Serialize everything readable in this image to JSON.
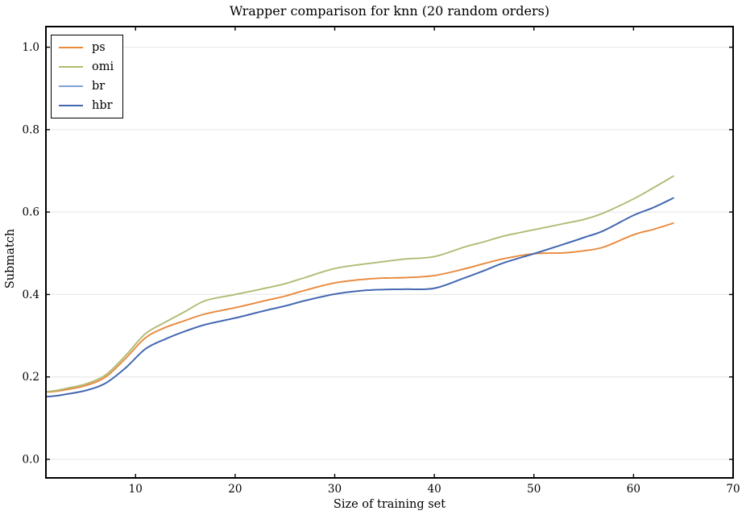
{
  "chart_data": {
    "type": "line",
    "title": "Wrapper comparison for knn (20 random orders)",
    "xlabel": "Size of training set",
    "ylabel": "Submatch",
    "xlim": [
      1,
      70
    ],
    "ylim": [
      -0.045,
      1.05
    ],
    "x_ticks": [
      10,
      20,
      30,
      40,
      50,
      60,
      70
    ],
    "y_ticks": [
      0.0,
      0.2,
      0.4,
      0.6,
      0.8,
      1.0
    ],
    "y_tick_labels": [
      "0.0",
      "0.2",
      "0.4",
      "0.6",
      "0.8",
      "1.0"
    ],
    "grid": "horizontal-only",
    "grid_color": "#e6e6e6",
    "legend_position": "upper-left",
    "x": [
      1,
      2,
      3,
      5,
      7,
      9,
      11,
      13,
      15,
      17,
      20,
      23,
      25,
      27,
      30,
      33,
      35,
      37,
      40,
      43,
      45,
      47,
      50,
      53,
      55,
      57,
      60,
      62,
      64
    ],
    "series": [
      {
        "name": "ps",
        "color": "#E8893C",
        "values": [
          0.163,
          0.165,
          0.169,
          0.179,
          0.2,
          0.245,
          0.295,
          0.32,
          0.337,
          0.353,
          0.368,
          0.385,
          0.396,
          0.41,
          0.428,
          0.437,
          0.44,
          0.441,
          0.446,
          0.462,
          0.475,
          0.487,
          0.499,
          0.501,
          0.506,
          0.515,
          0.545,
          0.558,
          0.573
        ]
      },
      {
        "name": "omi",
        "color": "#B1BB74",
        "values": [
          0.164,
          0.167,
          0.172,
          0.183,
          0.205,
          0.252,
          0.305,
          0.333,
          0.359,
          0.385,
          0.4,
          0.415,
          0.426,
          0.441,
          0.463,
          0.474,
          0.48,
          0.486,
          0.492,
          0.515,
          0.528,
          0.542,
          0.557,
          0.572,
          0.582,
          0.598,
          0.632,
          0.659,
          0.687
        ]
      },
      {
        "name": "br",
        "color": "#7FA2D6",
        "values": [
          0.152,
          0.154,
          0.158,
          0.167,
          0.185,
          0.222,
          0.268,
          0.292,
          0.311,
          0.327,
          0.343,
          0.361,
          0.372,
          0.385,
          0.401,
          0.41,
          0.412,
          0.413,
          0.415,
          0.44,
          0.458,
          0.477,
          0.499,
          0.522,
          0.538,
          0.555,
          0.592,
          0.611,
          0.634
        ]
      },
      {
        "name": "hbr",
        "color": "#4467B0",
        "values": [
          0.152,
          0.154,
          0.158,
          0.167,
          0.185,
          0.222,
          0.268,
          0.292,
          0.311,
          0.327,
          0.343,
          0.361,
          0.372,
          0.385,
          0.401,
          0.41,
          0.412,
          0.413,
          0.415,
          0.44,
          0.458,
          0.477,
          0.499,
          0.522,
          0.538,
          0.555,
          0.592,
          0.611,
          0.634
        ]
      }
    ]
  }
}
